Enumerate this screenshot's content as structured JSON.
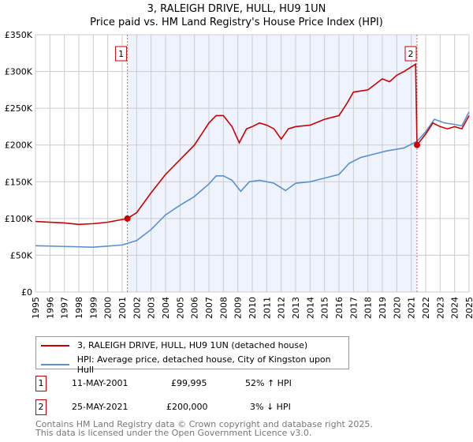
{
  "chart_data": {
    "type": "line",
    "title": "3, RALEIGH DRIVE, HULL, HU9 1UN",
    "subtitle": "Price paid vs. HM Land Registry's House Price Index (HPI)",
    "xlim": [
      1995,
      2025
    ],
    "ylim": [
      0,
      350000
    ],
    "x_ticks": [
      "1995",
      "1996",
      "1997",
      "1998",
      "1999",
      "2000",
      "2001",
      "2002",
      "2003",
      "2004",
      "2005",
      "2006",
      "2007",
      "2008",
      "2009",
      "2010",
      "2011",
      "2012",
      "2013",
      "2014",
      "2015",
      "2016",
      "2017",
      "2018",
      "2019",
      "2020",
      "2021",
      "2022",
      "2023",
      "2024",
      "2025"
    ],
    "y_ticks": [
      {
        "v": 0,
        "label": "£0"
      },
      {
        "v": 50000,
        "label": "£50K"
      },
      {
        "v": 100000,
        "label": "£100K"
      },
      {
        "v": 150000,
        "label": "£150K"
      },
      {
        "v": 200000,
        "label": "£200K"
      },
      {
        "v": 250000,
        "label": "£250K"
      },
      {
        "v": 300000,
        "label": "£300K"
      },
      {
        "v": 350000,
        "label": "£350K"
      }
    ],
    "grid": true,
    "series": [
      {
        "name": "3, RALEIGH DRIVE, HULL, HU9 1UN (detached house)",
        "color": "#cc0000",
        "x": [
          1995,
          1996,
          1997,
          1998,
          1999,
          2000,
          2001.36,
          2002,
          2003,
          2004,
          2005,
          2006,
          2007,
          2007.5,
          2008,
          2008.6,
          2009.1,
          2009.6,
          2010,
          2010.5,
          2011,
          2011.5,
          2012,
          2012.5,
          2013,
          2014,
          2015,
          2016,
          2016.5,
          2017,
          2018,
          2019,
          2019.5,
          2020,
          2020.5,
          2021.3,
          2021.4,
          2022,
          2022.5,
          2023,
          2023.5,
          2024,
          2024.5,
          2025
        ],
        "y": [
          96000,
          95000,
          94000,
          92000,
          93000,
          95000,
          99995,
          108000,
          135000,
          160000,
          180000,
          200000,
          230000,
          240000,
          240000,
          225000,
          203000,
          222000,
          225000,
          230000,
          227000,
          222000,
          208000,
          222000,
          225000,
          227000,
          235000,
          240000,
          255000,
          272000,
          275000,
          290000,
          286000,
          295000,
          300000,
          310000,
          200000,
          215000,
          230000,
          225000,
          222000,
          225000,
          222000,
          240000
        ]
      },
      {
        "name": "HPI: Average price, detached house, City of Kingston upon Hull",
        "color": "#5b8fd0",
        "x": [
          1995,
          1997,
          1999,
          2001,
          2002,
          2003,
          2004,
          2005,
          2006,
          2007,
          2007.5,
          2008,
          2008.6,
          2009.2,
          2009.8,
          2010.5,
          2011.5,
          2012.3,
          2013,
          2014,
          2015,
          2016,
          2016.7,
          2017.5,
          2018.5,
          2019.3,
          2020.5,
          2021.4,
          2022,
          2022.6,
          2023.3,
          2024,
          2024.5,
          2025
        ],
        "y": [
          63000,
          62000,
          61000,
          64000,
          70000,
          85000,
          105000,
          118000,
          130000,
          147000,
          158000,
          158000,
          152000,
          137000,
          150000,
          152000,
          148000,
          138000,
          148000,
          150000,
          155000,
          160000,
          175000,
          183000,
          188000,
          192000,
          196000,
          205000,
          218000,
          235000,
          230000,
          228000,
          226000,
          245000
        ]
      }
    ],
    "annotations": [
      {
        "label": "1",
        "x": 2001.36,
        "y": 99995
      },
      {
        "label": "2",
        "x": 2021.4,
        "y": 200000
      }
    ],
    "shaded_range": [
      2001.36,
      2021.4
    ],
    "legend_placement": "below"
  },
  "legend": {
    "items": [
      "3, RALEIGH DRIVE, HULL, HU9 1UN (detached house)",
      "HPI: Average price, detached house, City of Kingston upon Hull"
    ]
  },
  "transactions": [
    {
      "num": "1",
      "date": "11-MAY-2001",
      "price": "£99,995",
      "hpi": "52% ↑ HPI"
    },
    {
      "num": "2",
      "date": "25-MAY-2021",
      "price": "£200,000",
      "hpi": "3% ↓ HPI"
    }
  ],
  "footer": {
    "line1": "Contains HM Land Registry data © Crown copyright and database right 2025.",
    "line2": "This data is licensed under the Open Government Licence v3.0."
  }
}
